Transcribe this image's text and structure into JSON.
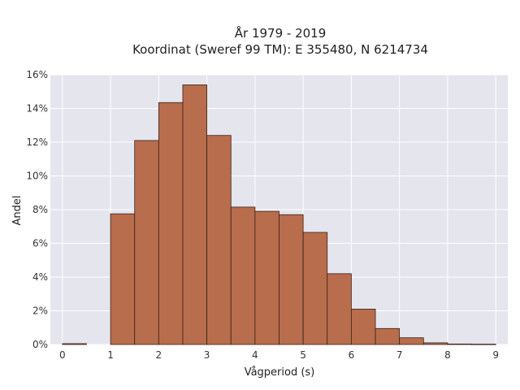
{
  "chart_data": {
    "type": "bar",
    "title_lines": [
      "År 1979 - 2019",
      "Koordinat (Sweref 99 TM): E 355480, N 6214734"
    ],
    "xlabel": "Vågperiod (s)",
    "ylabel": "Andel",
    "xlim": [
      -0.25,
      9.25
    ],
    "ylim": [
      0,
      16
    ],
    "x_ticks": [
      0,
      1,
      2,
      3,
      4,
      5,
      6,
      7,
      8,
      9
    ],
    "y_ticks": [
      0,
      2,
      4,
      6,
      8,
      10,
      12,
      14,
      16
    ],
    "y_tick_labels": [
      "0%",
      "2%",
      "4%",
      "6%",
      "8%",
      "10%",
      "12%",
      "14%",
      "16%"
    ],
    "bin_width": 0.5,
    "bins": [
      {
        "x0": 0.0,
        "x1": 0.5,
        "value": 0.05
      },
      {
        "x0": 0.5,
        "x1": 1.0,
        "value": 0.0
      },
      {
        "x0": 1.0,
        "x1": 1.5,
        "value": 7.75
      },
      {
        "x0": 1.5,
        "x1": 2.0,
        "value": 12.1
      },
      {
        "x0": 2.0,
        "x1": 2.5,
        "value": 14.35
      },
      {
        "x0": 2.5,
        "x1": 3.0,
        "value": 15.4
      },
      {
        "x0": 3.0,
        "x1": 3.5,
        "value": 12.4
      },
      {
        "x0": 3.5,
        "x1": 4.0,
        "value": 8.15
      },
      {
        "x0": 4.0,
        "x1": 4.5,
        "value": 7.9
      },
      {
        "x0": 4.5,
        "x1": 5.0,
        "value": 7.7
      },
      {
        "x0": 5.0,
        "x1": 5.5,
        "value": 6.65
      },
      {
        "x0": 5.5,
        "x1": 6.0,
        "value": 4.2
      },
      {
        "x0": 6.0,
        "x1": 6.5,
        "value": 2.1
      },
      {
        "x0": 6.5,
        "x1": 7.0,
        "value": 0.95
      },
      {
        "x0": 7.0,
        "x1": 7.5,
        "value": 0.4
      },
      {
        "x0": 7.5,
        "x1": 8.0,
        "value": 0.1
      },
      {
        "x0": 8.0,
        "x1": 8.5,
        "value": 0.03
      },
      {
        "x0": 8.5,
        "x1": 9.0,
        "value": 0.02
      }
    ],
    "grid": true,
    "colors": {
      "bar_fill": "#b86d4c",
      "bar_edge": "#3a2218",
      "plot_background": "#e5e5ee",
      "grid": "#ffffff"
    }
  }
}
